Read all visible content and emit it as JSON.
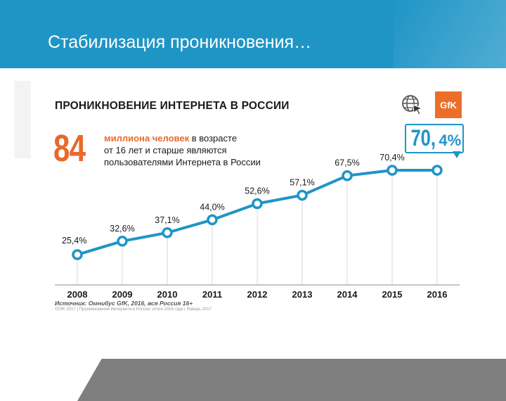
{
  "slide": {
    "title": "Стабилизация проникновения…"
  },
  "card": {
    "title": "ПРОНИКНОВЕНИЕ ИНТЕРНЕТА В РОССИИ",
    "big_number": "84",
    "text_highlight": "миллиона человек",
    "text_line1_rest": " в возрасте",
    "text_line2": "от 16 лет и старше являются",
    "text_line3": "пользователями Интернета в России",
    "callout_int": "70,",
    "callout_dec": "4%",
    "logo_text": "GfK",
    "source": "Источник: Омнибус GfK, 2016, вся Россия 16+",
    "source_small": "©GfK 2017 | Проникновение Интернета в России: итоги 2016 года | Январь 2017"
  },
  "colors": {
    "accent": "#1f95c6",
    "line": "#1f95c6",
    "number": "#e8692a",
    "bottom_band": "#7f7f7f"
  },
  "chart_data": {
    "type": "line",
    "title": "ПРОНИКНОВЕНИЕ ИНТЕРНЕТА В РОССИИ",
    "categories": [
      "2008",
      "2009",
      "2010",
      "2011",
      "2012",
      "2013",
      "2014",
      "2015",
      "2016"
    ],
    "series": [
      {
        "values": [
          25.4,
          32.6,
          37.1,
          44.0,
          52.6,
          57.1,
          67.5,
          70.4,
          70.4
        ],
        "labels": [
          "25,4%",
          "32,6%",
          "37,1%",
          "44,0%",
          "52,6%",
          "57,1%",
          "67,5%",
          "70,4%",
          ""
        ]
      }
    ],
    "xlabel": "",
    "ylabel": "",
    "grid": false
  }
}
